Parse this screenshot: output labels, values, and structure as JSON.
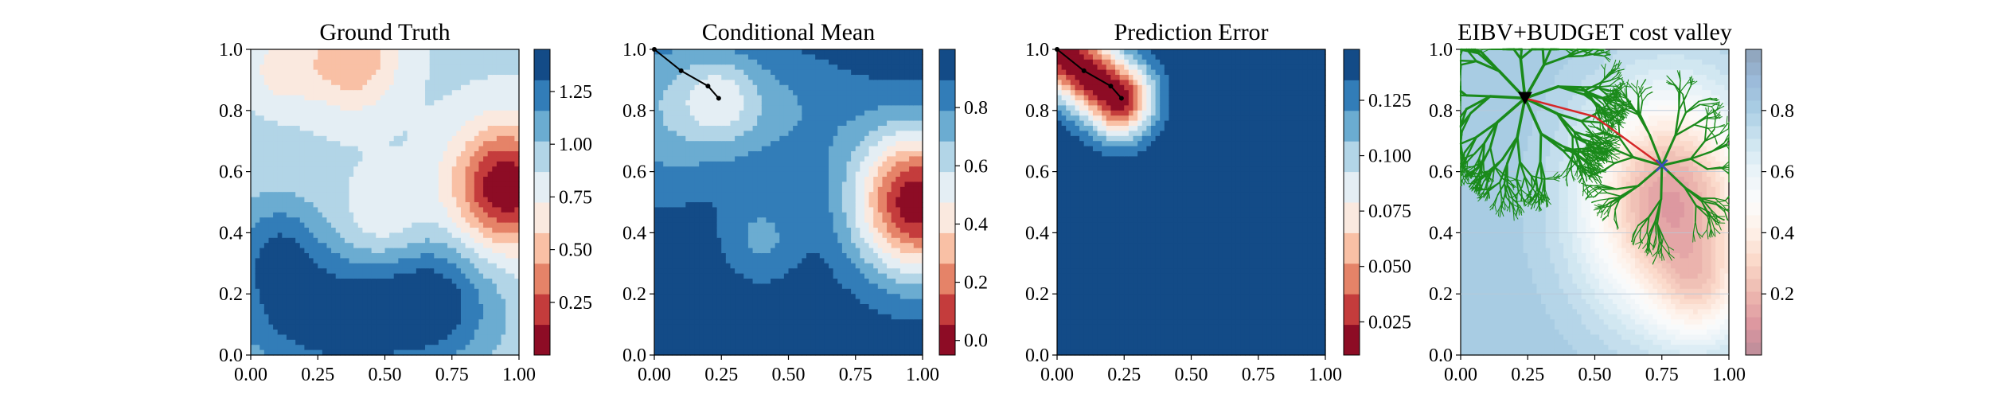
{
  "colors": {
    "diverging_rdbu": [
      "#67001f",
      "#b2182b",
      "#d6604d",
      "#f4a582",
      "#fddbc7",
      "#f7f7f7",
      "#d1e5f0",
      "#92c5de",
      "#4393c3",
      "#2166ac",
      "#053061"
    ],
    "tree": "#1a8a1a",
    "path_red": "#d62728",
    "marker_blue": "#3b4cc0",
    "path_black": "#000000"
  },
  "chart_data": [
    {
      "type": "heatmap",
      "title": "Ground Truth",
      "xlim": [
        0,
        1
      ],
      "ylim": [
        0,
        1
      ],
      "xticks": [
        "0.00",
        "0.25",
        "0.50",
        "0.75",
        "1.00"
      ],
      "yticks": [
        "0.0",
        "0.2",
        "0.4",
        "0.6",
        "0.8",
        "1.0"
      ],
      "colorbar": {
        "min": 0.0,
        "max": 1.45,
        "ticks": [
          "0.25",
          "0.50",
          "0.75",
          "1.00",
          "1.25"
        ],
        "tick_values": [
          0.25,
          0.5,
          0.75,
          1.0,
          1.25
        ],
        "levels": 10
      },
      "field": {
        "base": 0.9,
        "blobs": [
          {
            "x": 0.95,
            "y": 0.55,
            "sx": 0.14,
            "sy": 0.14,
            "a": -0.9
          },
          {
            "x": 0.38,
            "y": 0.97,
            "sx": 0.12,
            "sy": 0.12,
            "a": -0.45
          },
          {
            "x": 0.12,
            "y": 0.93,
            "sx": 0.09,
            "sy": 0.08,
            "a": -0.25
          },
          {
            "x": 0.35,
            "y": 0.12,
            "sx": 0.3,
            "sy": 0.15,
            "a": 0.55
          },
          {
            "x": 0.1,
            "y": 0.35,
            "sx": 0.12,
            "sy": 0.12,
            "a": 0.35
          },
          {
            "x": 0.7,
            "y": 0.2,
            "sx": 0.14,
            "sy": 0.14,
            "a": 0.3
          },
          {
            "x": 0.5,
            "y": 0.45,
            "sx": 0.1,
            "sy": 0.1,
            "a": -0.2
          }
        ]
      }
    },
    {
      "type": "heatmap",
      "title": "Conditional Mean",
      "xlim": [
        0,
        1
      ],
      "ylim": [
        0,
        1
      ],
      "xticks": [
        "0.00",
        "0.25",
        "0.50",
        "0.75",
        "1.00"
      ],
      "yticks": [
        "0.0",
        "0.2",
        "0.4",
        "0.6",
        "0.8",
        "1.0"
      ],
      "colorbar": {
        "min": -0.05,
        "max": 1.0,
        "ticks": [
          "0.0",
          "0.2",
          "0.4",
          "0.6",
          "0.8"
        ],
        "tick_values": [
          0.0,
          0.2,
          0.4,
          0.6,
          0.8
        ],
        "levels": 10
      },
      "field": {
        "base": 0.97,
        "blobs": [
          {
            "x": 0.98,
            "y": 0.5,
            "sx": 0.17,
            "sy": 0.17,
            "a": -1.0
          },
          {
            "x": 0.4,
            "y": 0.8,
            "sx": 0.25,
            "sy": 0.15,
            "a": -0.2
          },
          {
            "x": 0.0,
            "y": 0.8,
            "sx": 0.18,
            "sy": 0.22,
            "a": -0.2
          },
          {
            "x": 0.4,
            "y": 0.38,
            "sx": 0.1,
            "sy": 0.1,
            "a": -0.2
          },
          {
            "x": 0.24,
            "y": 0.84,
            "sx": 0.1,
            "sy": 0.1,
            "a": -0.25
          }
        ]
      },
      "path": [
        [
          0.0,
          1.0
        ],
        [
          0.1,
          0.93
        ],
        [
          0.2,
          0.88
        ],
        [
          0.24,
          0.84
        ]
      ]
    },
    {
      "type": "heatmap",
      "title": "Prediction Error",
      "xlim": [
        0,
        1
      ],
      "ylim": [
        0,
        1
      ],
      "xticks": [
        "0.00",
        "0.25",
        "0.50",
        "0.75",
        "1.00"
      ],
      "yticks": [
        "0.0",
        "0.2",
        "0.4",
        "0.6",
        "0.8",
        "1.0"
      ],
      "colorbar": {
        "min": 0.01,
        "max": 0.148,
        "ticks": [
          "0.025",
          "0.050",
          "0.075",
          "0.100",
          "0.125"
        ],
        "tick_values": [
          0.025,
          0.05,
          0.075,
          0.1,
          0.125
        ],
        "levels": 10
      },
      "field": {
        "base": 0.148,
        "segment_dip": {
          "from": [
            0.0,
            1.0
          ],
          "to": [
            0.23,
            0.84
          ],
          "sigma": 0.09,
          "a": -0.138
        }
      },
      "path": [
        [
          0.0,
          1.0
        ],
        [
          0.1,
          0.93
        ],
        [
          0.2,
          0.88
        ],
        [
          0.24,
          0.84
        ]
      ]
    },
    {
      "type": "heatmap",
      "title": "EIBV+BUDGET cost valley",
      "xlim": [
        0,
        1
      ],
      "ylim": [
        0,
        1
      ],
      "xticks": [
        "0.00",
        "0.25",
        "0.50",
        "0.75",
        "1.00"
      ],
      "yticks": [
        "0.0",
        "0.2",
        "0.4",
        "0.6",
        "0.8",
        "1.0"
      ],
      "colorbar": {
        "min": 0.0,
        "max": 1.0,
        "ticks": [
          "0.2",
          "0.4",
          "0.6",
          "0.8"
        ],
        "tick_values": [
          0.2,
          0.4,
          0.6,
          0.8
        ],
        "levels": 24,
        "palette": "light-rdbu"
      },
      "field": {
        "base": 0.82,
        "blobs": [
          {
            "x": 0.78,
            "y": 0.5,
            "sx": 0.22,
            "sy": 0.25,
            "a": -0.7
          },
          {
            "x": 0.9,
            "y": 0.2,
            "sx": 0.12,
            "sy": 0.12,
            "a": -0.25
          }
        ]
      },
      "start": [
        0.24,
        0.84
      ],
      "target": [
        0.75,
        0.62
      ],
      "path_points": [
        [
          0.24,
          0.84
        ],
        [
          0.5,
          0.78
        ],
        [
          0.75,
          0.62
        ]
      ],
      "tree": {
        "root": [
          0.24,
          0.84
        ],
        "target": [
          0.75,
          0.62
        ],
        "depth": 6
      }
    }
  ]
}
